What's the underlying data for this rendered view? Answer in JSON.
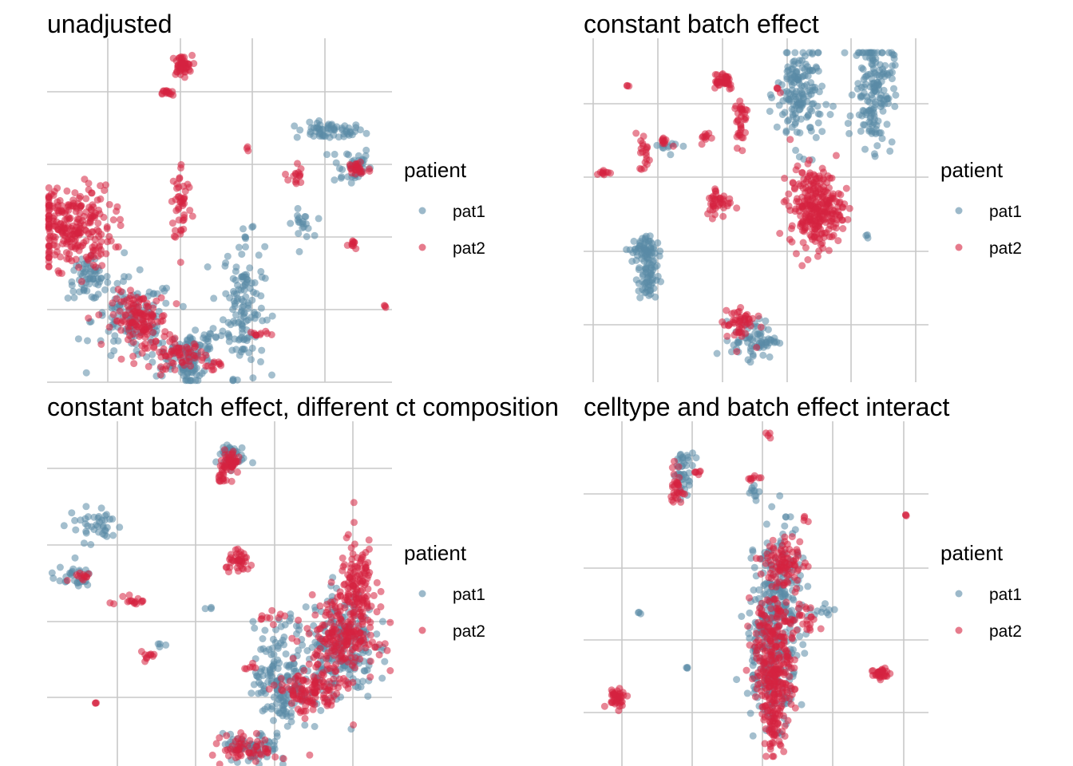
{
  "legend": {
    "title": "patient",
    "entries": [
      {
        "label": "pat1",
        "color": "#5a8aa6"
      },
      {
        "label": "pat2",
        "color": "#d6233f"
      }
    ]
  },
  "chart_data": [
    {
      "type": "scatter",
      "title": "unadjusted",
      "grid": true,
      "xlim": [
        0,
        1
      ],
      "ylim": [
        0,
        1
      ],
      "series": [
        {
          "name": "pat1",
          "color": "#5a8aa6",
          "clusters": [
            {
              "x": 0.42,
              "y": 0.05,
              "sx": 0.015,
              "sy": 0.04,
              "n": 50
            },
            {
              "x": 0.82,
              "y": 0.73,
              "sx": 0.05,
              "sy": 0.012,
              "n": 60
            },
            {
              "x": 0.88,
              "y": 0.63,
              "sx": 0.03,
              "sy": 0.03,
              "n": 40
            },
            {
              "x": 0.57,
              "y": 0.22,
              "sx": 0.03,
              "sy": 0.1,
              "n": 130
            },
            {
              "x": 0.47,
              "y": 0.13,
              "sx": 0.012,
              "sy": 0.012,
              "n": 12
            },
            {
              "x": 0.12,
              "y": 0.3,
              "sx": 0.03,
              "sy": 0.03,
              "n": 60
            },
            {
              "x": 0.25,
              "y": 0.18,
              "sx": 0.06,
              "sy": 0.06,
              "n": 110
            },
            {
              "x": 0.4,
              "y": 0.08,
              "sx": 0.05,
              "sy": 0.03,
              "n": 60
            },
            {
              "x": 0.74,
              "y": 0.46,
              "sx": 0.015,
              "sy": 0.02,
              "n": 20
            },
            {
              "x": 0.57,
              "y": 0.42,
              "sx": 0.004,
              "sy": 0.004,
              "n": 3
            }
          ]
        },
        {
          "name": "pat2",
          "color": "#d6233f",
          "clusters": [
            {
              "x": 0.39,
              "y": 0.92,
              "sx": 0.015,
              "sy": 0.015,
              "n": 45
            },
            {
              "x": 0.35,
              "y": 0.84,
              "sx": 0.008,
              "sy": 0.006,
              "n": 14
            },
            {
              "x": 0.58,
              "y": 0.68,
              "sx": 0.004,
              "sy": 0.004,
              "n": 3
            },
            {
              "x": 0.9,
              "y": 0.62,
              "sx": 0.02,
              "sy": 0.015,
              "n": 25
            },
            {
              "x": 0.98,
              "y": 0.22,
              "sx": 0.004,
              "sy": 0.004,
              "n": 3
            },
            {
              "x": 0.39,
              "y": 0.52,
              "sx": 0.015,
              "sy": 0.06,
              "n": 45
            },
            {
              "x": 0.72,
              "y": 0.6,
              "sx": 0.01,
              "sy": 0.02,
              "n": 15
            },
            {
              "x": 0.07,
              "y": 0.45,
              "sx": 0.06,
              "sy": 0.06,
              "n": 260
            },
            {
              "x": 0.27,
              "y": 0.18,
              "sx": 0.04,
              "sy": 0.04,
              "n": 130
            },
            {
              "x": 0.38,
              "y": 0.08,
              "sx": 0.04,
              "sy": 0.02,
              "n": 60
            },
            {
              "x": 0.89,
              "y": 0.4,
              "sx": 0.008,
              "sy": 0.008,
              "n": 10
            },
            {
              "x": 0.61,
              "y": 0.14,
              "sx": 0.015,
              "sy": 0.006,
              "n": 10
            },
            {
              "x": 0.48,
              "y": 0.05,
              "sx": 0.015,
              "sy": 0.006,
              "n": 10
            }
          ]
        }
      ]
    },
    {
      "type": "scatter",
      "title": "constant batch effect",
      "grid": true,
      "xlim": [
        0,
        1
      ],
      "ylim": [
        0,
        1
      ],
      "series": [
        {
          "name": "pat1",
          "color": "#5a8aa6",
          "clusters": [
            {
              "x": 0.64,
              "y": 0.86,
              "sx": 0.035,
              "sy": 0.08,
              "n": 160
            },
            {
              "x": 0.87,
              "y": 0.88,
              "sx": 0.03,
              "sy": 0.09,
              "n": 160
            },
            {
              "x": 0.15,
              "y": 0.38,
              "sx": 0.02,
              "sy": 0.02,
              "n": 45
            },
            {
              "x": 0.17,
              "y": 0.3,
              "sx": 0.015,
              "sy": 0.05,
              "n": 70
            },
            {
              "x": 0.5,
              "y": 0.1,
              "sx": 0.035,
              "sy": 0.03,
              "n": 70
            },
            {
              "x": 0.85,
              "y": 0.42,
              "sx": 0.004,
              "sy": 0.004,
              "n": 3
            },
            {
              "x": 0.25,
              "y": 0.7,
              "sx": 0.02,
              "sy": 0.01,
              "n": 10
            }
          ]
        },
        {
          "name": "pat2",
          "color": "#d6233f",
          "clusters": [
            {
              "x": 0.11,
              "y": 0.89,
              "sx": 0.004,
              "sy": 0.004,
              "n": 3
            },
            {
              "x": 0.4,
              "y": 0.91,
              "sx": 0.02,
              "sy": 0.015,
              "n": 40
            },
            {
              "x": 0.46,
              "y": 0.81,
              "sx": 0.01,
              "sy": 0.02,
              "n": 20
            },
            {
              "x": 0.46,
              "y": 0.74,
              "sx": 0.008,
              "sy": 0.02,
              "n": 15
            },
            {
              "x": 0.35,
              "y": 0.73,
              "sx": 0.008,
              "sy": 0.01,
              "n": 10
            },
            {
              "x": 0.22,
              "y": 0.72,
              "sx": 0.01,
              "sy": 0.008,
              "n": 10
            },
            {
              "x": 0.16,
              "y": 0.68,
              "sx": 0.008,
              "sy": 0.03,
              "n": 20
            },
            {
              "x": 0.03,
              "y": 0.62,
              "sx": 0.015,
              "sy": 0.004,
              "n": 10
            },
            {
              "x": 0.39,
              "y": 0.53,
              "sx": 0.02,
              "sy": 0.025,
              "n": 40
            },
            {
              "x": 0.69,
              "y": 0.51,
              "sx": 0.04,
              "sy": 0.06,
              "n": 280
            },
            {
              "x": 0.45,
              "y": 0.15,
              "sx": 0.025,
              "sy": 0.03,
              "n": 50
            },
            {
              "x": 0.57,
              "y": 0.88,
              "sx": 0.006,
              "sy": 0.006,
              "n": 4
            }
          ]
        }
      ]
    },
    {
      "type": "scatter",
      "title": "constant batch effect, different ct composition",
      "grid": true,
      "xlim": [
        0,
        1
      ],
      "ylim": [
        0,
        1
      ],
      "series": [
        {
          "name": "pat1",
          "color": "#5a8aa6",
          "clusters": [
            {
              "x": 0.53,
              "y": 0.9,
              "sx": 0.02,
              "sy": 0.02,
              "n": 40
            },
            {
              "x": 0.14,
              "y": 0.7,
              "sx": 0.04,
              "sy": 0.025,
              "n": 40
            },
            {
              "x": 0.07,
              "y": 0.55,
              "sx": 0.03,
              "sy": 0.015,
              "n": 30
            },
            {
              "x": 0.68,
              "y": 0.25,
              "sx": 0.04,
              "sy": 0.08,
              "n": 170
            },
            {
              "x": 0.85,
              "y": 0.35,
              "sx": 0.05,
              "sy": 0.08,
              "n": 200
            },
            {
              "x": 0.59,
              "y": 0.05,
              "sx": 0.04,
              "sy": 0.02,
              "n": 60
            },
            {
              "x": 0.47,
              "y": 0.46,
              "sx": 0.004,
              "sy": 0.004,
              "n": 3
            },
            {
              "x": 0.33,
              "y": 0.35,
              "sx": 0.006,
              "sy": 0.004,
              "n": 4
            }
          ]
        },
        {
          "name": "pat2",
          "color": "#d6233f",
          "clusters": [
            {
              "x": 0.53,
              "y": 0.88,
              "sx": 0.015,
              "sy": 0.02,
              "n": 50
            },
            {
              "x": 0.51,
              "y": 0.84,
              "sx": 0.006,
              "sy": 0.01,
              "n": 10
            },
            {
              "x": 0.56,
              "y": 0.59,
              "sx": 0.02,
              "sy": 0.015,
              "n": 40
            },
            {
              "x": 0.9,
              "y": 0.5,
              "sx": 0.025,
              "sy": 0.08,
              "n": 130
            },
            {
              "x": 0.85,
              "y": 0.38,
              "sx": 0.05,
              "sy": 0.06,
              "n": 200
            },
            {
              "x": 0.76,
              "y": 0.21,
              "sx": 0.05,
              "sy": 0.03,
              "n": 110
            },
            {
              "x": 0.59,
              "y": 0.05,
              "sx": 0.04,
              "sy": 0.02,
              "n": 60
            },
            {
              "x": 0.1,
              "y": 0.55,
              "sx": 0.015,
              "sy": 0.01,
              "n": 12
            },
            {
              "x": 0.24,
              "y": 0.48,
              "sx": 0.03,
              "sy": 0.012,
              "n": 16
            },
            {
              "x": 0.29,
              "y": 0.32,
              "sx": 0.015,
              "sy": 0.006,
              "n": 10
            },
            {
              "x": 0.14,
              "y": 0.18,
              "sx": 0.004,
              "sy": 0.004,
              "n": 3
            },
            {
              "x": 0.65,
              "y": 0.43,
              "sx": 0.02,
              "sy": 0.008,
              "n": 10
            },
            {
              "x": 0.59,
              "y": 0.29,
              "sx": 0.01,
              "sy": 0.01,
              "n": 6
            }
          ]
        }
      ]
    },
    {
      "type": "scatter",
      "title": "celltype and batch effect interact",
      "grid": true,
      "xlim": [
        0,
        1
      ],
      "ylim": [
        0,
        1
      ],
      "series": [
        {
          "name": "pat1",
          "color": "#5a8aa6",
          "clusters": [
            {
              "x": 0.55,
              "y": 0.45,
              "sx": 0.035,
              "sy": 0.12,
              "n": 200
            },
            {
              "x": 0.53,
              "y": 0.3,
              "sx": 0.04,
              "sy": 0.1,
              "n": 150
            },
            {
              "x": 0.27,
              "y": 0.85,
              "sx": 0.015,
              "sy": 0.03,
              "n": 40
            },
            {
              "x": 0.48,
              "y": 0.79,
              "sx": 0.008,
              "sy": 0.01,
              "n": 10
            },
            {
              "x": 0.14,
              "y": 0.43,
              "sx": 0.004,
              "sy": 0.004,
              "n": 3
            },
            {
              "x": 0.28,
              "y": 0.27,
              "sx": 0.004,
              "sy": 0.004,
              "n": 3
            },
            {
              "x": 0.69,
              "y": 0.44,
              "sx": 0.02,
              "sy": 0.01,
              "n": 10
            }
          ]
        },
        {
          "name": "pat2",
          "color": "#d6233f",
          "clusters": [
            {
              "x": 0.52,
              "y": 0.96,
              "sx": 0.004,
              "sy": 0.006,
              "n": 4
            },
            {
              "x": 0.25,
              "y": 0.81,
              "sx": 0.01,
              "sy": 0.03,
              "n": 30
            },
            {
              "x": 0.31,
              "y": 0.85,
              "sx": 0.006,
              "sy": 0.006,
              "n": 6
            },
            {
              "x": 0.48,
              "y": 0.83,
              "sx": 0.01,
              "sy": 0.006,
              "n": 8
            },
            {
              "x": 0.63,
              "y": 0.71,
              "sx": 0.006,
              "sy": 0.006,
              "n": 4
            },
            {
              "x": 0.93,
              "y": 0.72,
              "sx": 0.004,
              "sy": 0.004,
              "n": 3
            },
            {
              "x": 0.57,
              "y": 0.58,
              "sx": 0.03,
              "sy": 0.04,
              "n": 90
            },
            {
              "x": 0.53,
              "y": 0.35,
              "sx": 0.035,
              "sy": 0.08,
              "n": 150
            },
            {
              "x": 0.54,
              "y": 0.22,
              "sx": 0.03,
              "sy": 0.06,
              "n": 120
            },
            {
              "x": 0.54,
              "y": 0.1,
              "sx": 0.015,
              "sy": 0.04,
              "n": 60
            },
            {
              "x": 0.07,
              "y": 0.18,
              "sx": 0.015,
              "sy": 0.015,
              "n": 40
            },
            {
              "x": 0.86,
              "y": 0.25,
              "sx": 0.015,
              "sy": 0.01,
              "n": 30
            },
            {
              "x": 0.64,
              "y": 0.42,
              "sx": 0.02,
              "sy": 0.02,
              "n": 20
            }
          ]
        }
      ]
    }
  ]
}
